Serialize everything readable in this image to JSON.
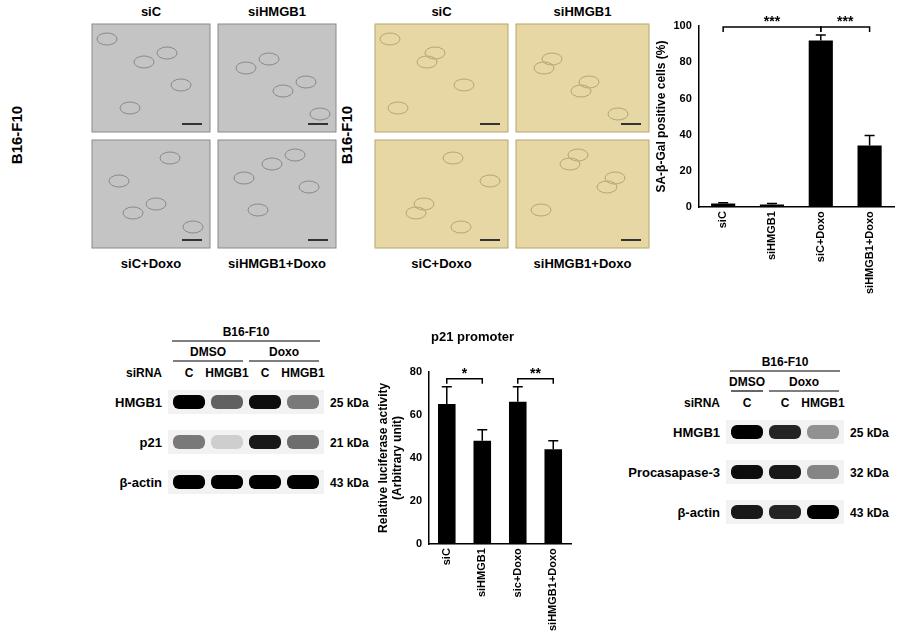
{
  "chart_data": [
    {
      "type": "bar",
      "y_label": "SA-β-Gal positive cells (%)",
      "categories": [
        "siC",
        "siHMGB1",
        "siC+Doxo",
        "siHMGB1+Doxo"
      ],
      "values": [
        2,
        1.5,
        92,
        34
      ],
      "errors": [
        0.5,
        0.5,
        3,
        5.5
      ],
      "color": "#000000",
      "ylim": [
        0,
        100
      ],
      "yticks": [
        0,
        20,
        40,
        60,
        80,
        100
      ],
      "grid": false,
      "significance": [
        {
          "between": [
            "siC",
            "siC+Doxo"
          ],
          "label": "***"
        },
        {
          "between": [
            "siC+Doxo",
            "siHMGB1+Doxo"
          ],
          "label": "***"
        }
      ]
    },
    {
      "type": "bar",
      "title": "p21 promoter",
      "y_label": [
        "Relative luciferase activity",
        "(Arbitrary unit)"
      ],
      "categories": [
        "siC",
        "siHMGB1",
        "sic+Doxo",
        "siHMGB1+Doxo"
      ],
      "values": [
        65,
        48,
        66,
        44
      ],
      "errors": [
        8,
        5,
        7,
        4
      ],
      "color": "#000000",
      "ylim": [
        0,
        80
      ],
      "yticks": [
        0,
        20,
        40,
        60,
        80
      ],
      "grid": false,
      "significance": [
        {
          "between": [
            "siC",
            "siHMGB1"
          ],
          "label": "*"
        },
        {
          "between": [
            "sic+Doxo",
            "siHMGB1+Doxo"
          ],
          "label": "**"
        }
      ]
    }
  ],
  "micrographs": [
    {
      "cell_line": "B16-F10",
      "panels": [
        "siC",
        "siHMGB1",
        "siC+Doxo",
        "siHMGB1+Doxo"
      ]
    },
    {
      "cell_line": "B16-F10",
      "panels": [
        "siC",
        "siHMGB1",
        "siC+Doxo",
        "siHMGB1+Doxo"
      ]
    }
  ],
  "blots": [
    {
      "cell_line": "B16-F10",
      "treatments": [
        "DMSO",
        "DMSO",
        "Doxo",
        "Doxo"
      ],
      "siRNA_label": "siRNA",
      "lanes": [
        "C",
        "HMGB1",
        "C",
        "HMGB1"
      ],
      "rows": [
        {
          "protein": "HMGB1",
          "size": "25 kDa",
          "band_intensity": [
            1,
            0.6,
            0.95,
            0.5
          ]
        },
        {
          "protein": "p21",
          "size": "21 kDa",
          "band_intensity": [
            0.5,
            0.15,
            0.9,
            0.55
          ]
        },
        {
          "protein": "β-actin",
          "size": "43 kDa",
          "band_intensity": [
            1,
            1,
            1,
            1
          ]
        }
      ]
    },
    {
      "cell_line": "B16-F10",
      "treatments": [
        "DMSO",
        "Doxo",
        "Doxo"
      ],
      "siRNA_label": "siRNA",
      "lanes": [
        "C",
        "C",
        "HMGB1"
      ],
      "rows": [
        {
          "protein": "HMGB1",
          "size": "25 kDa",
          "band_intensity": [
            1,
            0.85,
            0.4
          ]
        },
        {
          "protein": "Procasapase-3",
          "size": "32 kDa",
          "band_intensity": [
            0.95,
            0.9,
            0.45
          ]
        },
        {
          "protein": "β-actin",
          "size": "43 kDa",
          "band_intensity": [
            0.9,
            0.85,
            1
          ]
        }
      ]
    }
  ]
}
